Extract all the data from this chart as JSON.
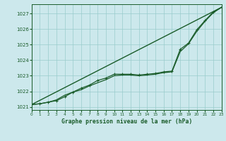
{
  "title": "Graphe pression niveau de la mer (hPa)",
  "bg_color": "#cce8ec",
  "grid_color": "#99cccc",
  "line_color": "#1a5c2a",
  "x_min": 0,
  "x_max": 23,
  "y_min": 1020.8,
  "y_max": 1027.6,
  "y_ticks": [
    1021,
    1022,
    1023,
    1024,
    1025,
    1026,
    1027
  ],
  "straight_line": [
    [
      0,
      1021.15
    ],
    [
      23,
      1027.4
    ]
  ],
  "series_smooth": [
    [
      0,
      1021.15
    ],
    [
      1,
      1021.2
    ],
    [
      2,
      1021.3
    ],
    [
      3,
      1021.45
    ],
    [
      4,
      1021.75
    ],
    [
      5,
      1021.95
    ],
    [
      6,
      1022.1
    ],
    [
      7,
      1022.35
    ],
    [
      8,
      1022.55
    ],
    [
      9,
      1022.75
    ],
    [
      10,
      1023.0
    ],
    [
      11,
      1023.05
    ],
    [
      12,
      1023.05
    ],
    [
      13,
      1023.0
    ],
    [
      14,
      1023.05
    ],
    [
      15,
      1023.1
    ],
    [
      16,
      1023.2
    ],
    [
      17,
      1023.25
    ],
    [
      18,
      1024.55
    ],
    [
      19,
      1025.05
    ],
    [
      20,
      1025.85
    ],
    [
      21,
      1026.5
    ],
    [
      22,
      1027.05
    ],
    [
      23,
      1027.4
    ]
  ],
  "series_dotted": [
    [
      0,
      1021.15
    ],
    [
      1,
      1021.2
    ],
    [
      2,
      1021.3
    ],
    [
      3,
      1021.4
    ],
    [
      4,
      1021.65
    ],
    [
      5,
      1021.95
    ],
    [
      6,
      1022.2
    ],
    [
      7,
      1022.4
    ],
    [
      8,
      1022.7
    ],
    [
      9,
      1022.85
    ],
    [
      10,
      1023.1
    ],
    [
      11,
      1023.1
    ],
    [
      12,
      1023.1
    ],
    [
      13,
      1023.05
    ],
    [
      14,
      1023.1
    ],
    [
      15,
      1023.15
    ],
    [
      16,
      1023.25
    ],
    [
      17,
      1023.3
    ],
    [
      18,
      1024.7
    ],
    [
      19,
      1025.1
    ],
    [
      20,
      1025.95
    ],
    [
      21,
      1026.55
    ],
    [
      22,
      1027.1
    ],
    [
      23,
      1027.4
    ]
  ]
}
